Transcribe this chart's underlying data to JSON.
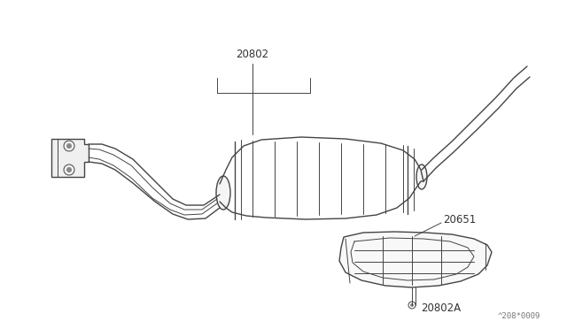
{
  "background_color": "#ffffff",
  "line_color": "#444444",
  "label_color": "#333333",
  "watermark": "^208*0009",
  "fig_width": 6.4,
  "fig_height": 3.72,
  "dpi": 100
}
